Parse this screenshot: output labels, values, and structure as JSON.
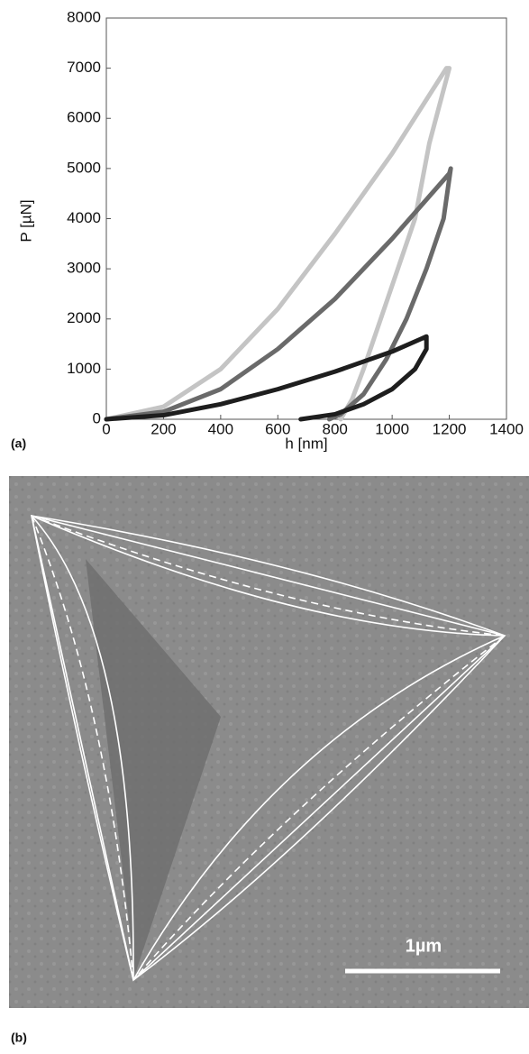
{
  "chart_data": {
    "type": "line",
    "xlabel": "h [nm]",
    "ylabel": "P [µN]",
    "xlim": [
      0,
      1400
    ],
    "ylim": [
      0,
      8000
    ],
    "xticks": [
      0,
      200,
      400,
      600,
      800,
      1000,
      1200,
      1400
    ],
    "yticks": [
      0,
      1000,
      2000,
      3000,
      4000,
      5000,
      6000,
      7000,
      8000
    ],
    "grid": false,
    "series": [
      {
        "color": "#c4c4c4",
        "x": [
          0,
          200,
          400,
          600,
          800,
          1000,
          1190,
          1200,
          1130,
          1080,
          1020,
          960,
          900,
          860,
          820
        ],
        "values": [
          0,
          250,
          1000,
          2200,
          3700,
          5300,
          7000,
          7000,
          5500,
          4000,
          3000,
          2000,
          1000,
          400,
          0
        ]
      },
      {
        "color": "#6a6a6a",
        "x": [
          0,
          200,
          400,
          600,
          800,
          1000,
          1200,
          1205,
          1180,
          1120,
          1050,
          980,
          900,
          820,
          780
        ],
        "values": [
          0,
          150,
          600,
          1400,
          2400,
          3600,
          4900,
          5000,
          4000,
          3000,
          2000,
          1200,
          500,
          100,
          0
        ]
      },
      {
        "color": "#1e1e1e",
        "x": [
          0,
          200,
          400,
          600,
          800,
          1000,
          1100,
          1120,
          1120,
          1080,
          1000,
          900,
          800,
          680
        ],
        "values": [
          0,
          80,
          300,
          600,
          950,
          1350,
          1600,
          1650,
          1400,
          1000,
          600,
          300,
          100,
          0
        ]
      }
    ]
  },
  "panel_labels": [
    "(a)",
    "(b)"
  ],
  "scale_bar": "1µm"
}
